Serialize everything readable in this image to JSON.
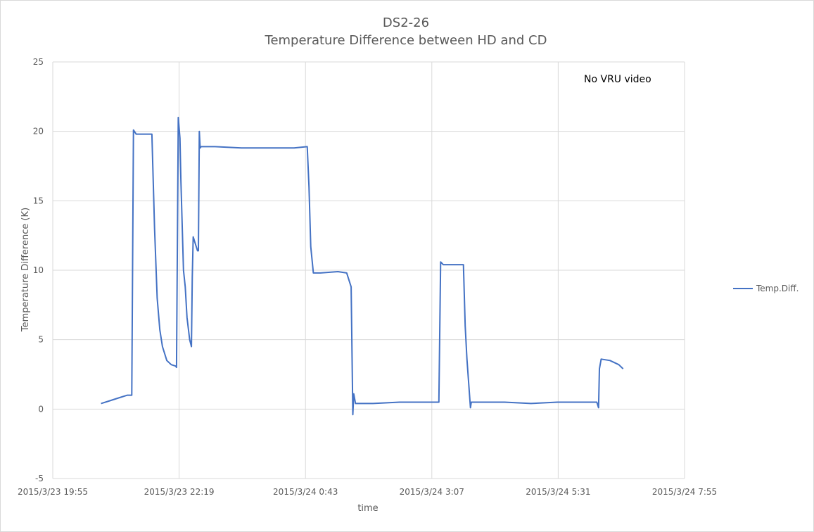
{
  "chart_data": {
    "type": "line",
    "title": "DS2-26",
    "subtitle": "Temperature Difference between HD and CD",
    "xlabel": "time",
    "ylabel": "Temperature Difference (K)",
    "annotation": "No VRU video",
    "ylim": [
      -5,
      25
    ],
    "yticks": [
      25,
      20,
      15,
      10,
      5,
      0,
      -5
    ],
    "xlim": [
      "2015/3/23 19:55",
      "2015/3/24 7:55"
    ],
    "xticks": [
      "2015/3/23 19:55",
      "2015/3/23 22:19",
      "2015/3/24 0:43",
      "2015/3/24 3:07",
      "2015/3/24 5:31",
      "2015/3/24 7:55"
    ],
    "grid": true,
    "legend_position": "right",
    "series": [
      {
        "name": "Temp.Diff.",
        "color": "#4472c4",
        "points": [
          [
            "2015/3/23 20:50",
            0.4
          ],
          [
            "2015/3/23 21:00",
            0.6
          ],
          [
            "2015/3/23 21:10",
            0.8
          ],
          [
            "2015/3/23 21:20",
            1.0
          ],
          [
            "2015/3/23 21:25",
            1.0
          ],
          [
            "2015/3/23 21:27",
            20.1
          ],
          [
            "2015/3/23 21:30",
            19.8
          ],
          [
            "2015/3/23 21:40",
            19.8
          ],
          [
            "2015/3/23 21:48",
            19.8
          ],
          [
            "2015/3/23 21:51",
            13.0
          ],
          [
            "2015/3/23 21:54",
            8.0
          ],
          [
            "2015/3/23 21:57",
            5.7
          ],
          [
            "2015/3/23 22:00",
            4.5
          ],
          [
            "2015/3/23 22:05",
            3.5
          ],
          [
            "2015/3/23 22:10",
            3.2
          ],
          [
            "2015/3/23 22:15",
            3.1
          ],
          [
            "2015/3/23 22:16",
            3.0
          ],
          [
            "2015/3/23 22:18",
            21.0
          ],
          [
            "2015/3/23 22:20",
            19.5
          ],
          [
            "2015/3/23 22:21",
            16.5
          ],
          [
            "2015/3/23 22:24",
            10.0
          ],
          [
            "2015/3/23 22:26",
            8.8
          ],
          [
            "2015/3/23 22:28",
            6.6
          ],
          [
            "2015/3/23 22:31",
            5.0
          ],
          [
            "2015/3/23 22:33",
            4.5
          ],
          [
            "2015/3/23 22:34",
            9.5
          ],
          [
            "2015/3/23 22:35",
            12.4
          ],
          [
            "2015/3/23 22:38",
            11.8
          ],
          [
            "2015/3/23 22:40",
            11.4
          ],
          [
            "2015/3/23 22:41",
            11.4
          ],
          [
            "2015/3/23 22:42",
            20.0
          ],
          [
            "2015/3/23 22:43",
            18.8
          ],
          [
            "2015/3/23 22:44",
            18.9
          ],
          [
            "2015/3/23 23:00",
            18.9
          ],
          [
            "2015/3/23 23:30",
            18.8
          ],
          [
            "2015/3/24 0:00",
            18.8
          ],
          [
            "2015/3/24 0:30",
            18.8
          ],
          [
            "2015/3/24 0:45",
            18.9
          ],
          [
            "2015/3/24 0:47",
            16.0
          ],
          [
            "2015/3/24 0:49",
            11.7
          ],
          [
            "2015/3/24 0:52",
            9.8
          ],
          [
            "2015/3/24 1:00",
            9.8
          ],
          [
            "2015/3/24 1:20",
            9.9
          ],
          [
            "2015/3/24 1:30",
            9.8
          ],
          [
            "2015/3/24 1:35",
            8.8
          ],
          [
            "2015/3/24 1:37",
            -0.4
          ],
          [
            "2015/3/24 1:38",
            1.1
          ],
          [
            "2015/3/24 1:40",
            0.4
          ],
          [
            "2015/3/24 2:00",
            0.4
          ],
          [
            "2015/3/24 2:30",
            0.5
          ],
          [
            "2015/3/24 3:00",
            0.5
          ],
          [
            "2015/3/24 3:15",
            0.5
          ],
          [
            "2015/3/24 3:17",
            10.6
          ],
          [
            "2015/3/24 3:20",
            10.4
          ],
          [
            "2015/3/24 3:30",
            10.4
          ],
          [
            "2015/3/24 3:43",
            10.4
          ],
          [
            "2015/3/24 3:45",
            6.0
          ],
          [
            "2015/3/24 3:47",
            3.6
          ],
          [
            "2015/3/24 3:50",
            1.0
          ],
          [
            "2015/3/24 3:51",
            0.1
          ],
          [
            "2015/3/24 3:52",
            0.5
          ],
          [
            "2015/3/24 4:30",
            0.5
          ],
          [
            "2015/3/24 5:00",
            0.4
          ],
          [
            "2015/3/24 5:30",
            0.5
          ],
          [
            "2015/3/24 6:00",
            0.5
          ],
          [
            "2015/3/24 6:15",
            0.5
          ],
          [
            "2015/3/24 6:17",
            0.1
          ],
          [
            "2015/3/24 6:18",
            2.9
          ],
          [
            "2015/3/24 6:20",
            3.6
          ],
          [
            "2015/3/24 6:30",
            3.5
          ],
          [
            "2015/3/24 6:40",
            3.2
          ],
          [
            "2015/3/24 6:45",
            2.9
          ]
        ]
      }
    ]
  }
}
